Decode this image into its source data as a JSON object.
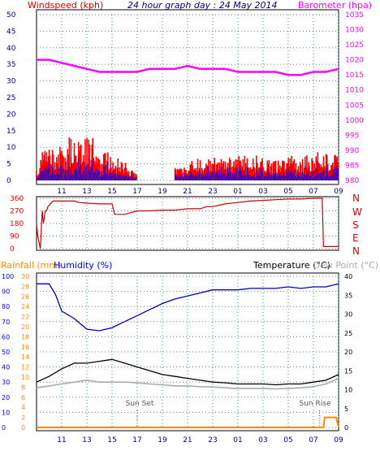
{
  "chart_data": [
    {
      "type": "line",
      "title": "24 hour graph day : 24 May 2014",
      "left_axis_label": "Windspeed (kph)",
      "right_axis_label": "Barometer (hpa)",
      "x_ticks": [
        "11",
        "13",
        "15",
        "17",
        "19",
        "21",
        "23",
        "01",
        "03",
        "05",
        "07",
        "09"
      ],
      "left_ticks": [
        0,
        5,
        10,
        15,
        20,
        25,
        30,
        35,
        40,
        45,
        50
      ],
      "right_ticks": [
        980,
        985,
        990,
        995,
        1000,
        1005,
        1010,
        1015,
        1020,
        1025,
        1030,
        1035
      ],
      "ylim_left": [
        0,
        50
      ],
      "ylim_right": [
        980,
        1035
      ],
      "grid": true,
      "series": [
        {
          "name": "Barometer (hpa)",
          "axis": "right",
          "color": "#ff00ff",
          "points": [
            [
              9.0,
              1020
            ],
            [
              10.0,
              1020
            ],
            [
              11.0,
              1019
            ],
            [
              12.0,
              1018
            ],
            [
              13.0,
              1017
            ],
            [
              14.0,
              1016
            ],
            [
              15.0,
              1016
            ],
            [
              16.0,
              1016
            ],
            [
              17.0,
              1016
            ],
            [
              18.0,
              1017
            ],
            [
              19.0,
              1017
            ],
            [
              20.0,
              1017
            ],
            [
              21.0,
              1018
            ],
            [
              22.0,
              1017
            ],
            [
              23.0,
              1017
            ],
            [
              24.0,
              1017
            ],
            [
              25.0,
              1016
            ],
            [
              26.0,
              1016
            ],
            [
              27.0,
              1016
            ],
            [
              28.0,
              1016
            ],
            [
              29.0,
              1015
            ],
            [
              30.0,
              1015
            ],
            [
              31.0,
              1016
            ],
            [
              32.0,
              1016
            ],
            [
              33.0,
              1017
            ]
          ]
        }
      ]
    },
    {
      "type": "line",
      "y_ticks": [
        0,
        90,
        180,
        270,
        360
      ],
      "direction_labels": [
        "N",
        "W",
        "S",
        "E",
        "N"
      ],
      "ylim": [
        0,
        360
      ],
      "grid": true,
      "series": [
        {
          "name": "Wind direction",
          "color": "#cc0000",
          "points": [
            [
              9.0,
              180
            ],
            [
              9.1,
              90
            ],
            [
              9.3,
              0
            ],
            [
              9.45,
              270
            ],
            [
              9.55,
              180
            ],
            [
              9.7,
              270
            ],
            [
              9.8,
              270
            ],
            [
              9.9,
              300
            ],
            [
              10.3,
              340
            ],
            [
              11.0,
              340
            ],
            [
              12.0,
              340
            ],
            [
              12.4,
              330
            ],
            [
              13.0,
              325
            ],
            [
              14.0,
              320
            ],
            [
              15.0,
              320
            ],
            [
              15.2,
              245
            ],
            [
              16.0,
              245
            ],
            [
              17.0,
              270
            ],
            [
              18.0,
              270
            ],
            [
              19.0,
              275
            ],
            [
              20.0,
              275
            ],
            [
              21.0,
              285
            ],
            [
              22.0,
              285
            ],
            [
              22.5,
              300
            ],
            [
              23.0,
              300
            ],
            [
              24.0,
              320
            ],
            [
              25.0,
              330
            ],
            [
              26.0,
              340
            ],
            [
              27.0,
              345
            ],
            [
              28.0,
              350
            ],
            [
              29.0,
              355
            ],
            [
              30.0,
              355
            ],
            [
              31.0,
              360
            ],
            [
              31.7,
              360
            ],
            [
              31.8,
              15
            ],
            [
              33.0,
              15
            ]
          ]
        }
      ]
    },
    {
      "type": "line",
      "left_axis_labels": [
        "Rainfall (mm)",
        "Humidity (%)"
      ],
      "right_axis_labels": [
        "Temperature (°C)",
        "Dew Point (°C)"
      ],
      "humidity_ticks": [
        0,
        10,
        20,
        30,
        40,
        50,
        60,
        70,
        80,
        90,
        100
      ],
      "rain_ticks": [
        0,
        2,
        4,
        6,
        8,
        10,
        12,
        14,
        16,
        18,
        20,
        22,
        24,
        26,
        28,
        30
      ],
      "temp_ticks": [
        0,
        5,
        10,
        15,
        20,
        25,
        30,
        35,
        40
      ],
      "x_ticks": [
        "11",
        "13",
        "15",
        "17",
        "19",
        "21",
        "23",
        "01",
        "03",
        "05",
        "07",
        "09"
      ],
      "annotations": [
        {
          "text": "Sun Set",
          "x": 17.0
        },
        {
          "text": "Sun Rise",
          "x": 31.5
        }
      ],
      "ylim_temp": [
        0,
        40
      ],
      "ylim_humidity": [
        0,
        100
      ],
      "grid": true,
      "series": [
        {
          "name": "Humidity (%)",
          "color": "#0000bb",
          "points": [
            [
              9.0,
              95
            ],
            [
              10.0,
              95
            ],
            [
              10.5,
              88
            ],
            [
              11.0,
              77
            ],
            [
              12.0,
              72
            ],
            [
              13.0,
              65
            ],
            [
              14.0,
              64
            ],
            [
              15.0,
              66
            ],
            [
              16.0,
              70
            ],
            [
              17.0,
              74
            ],
            [
              18.0,
              78
            ],
            [
              19.0,
              82
            ],
            [
              20.0,
              85
            ],
            [
              21.0,
              87
            ],
            [
              22.0,
              89
            ],
            [
              23.0,
              91
            ],
            [
              24.0,
              91
            ],
            [
              25.0,
              91
            ],
            [
              26.0,
              92
            ],
            [
              27.0,
              92
            ],
            [
              28.0,
              92
            ],
            [
              29.0,
              93
            ],
            [
              30.0,
              92
            ],
            [
              31.0,
              93
            ],
            [
              32.0,
              93
            ],
            [
              33.0,
              95
            ]
          ]
        },
        {
          "name": "Temperature (°C)",
          "color": "#000000",
          "points": [
            [
              9.0,
              12.0
            ],
            [
              10.0,
              13.5
            ],
            [
              11.0,
              15.5
            ],
            [
              12.0,
              17.0
            ],
            [
              13.0,
              17.0
            ],
            [
              14.0,
              17.5
            ],
            [
              15.0,
              18.0
            ],
            [
              16.0,
              17.0
            ],
            [
              17.0,
              16.0
            ],
            [
              18.0,
              15.0
            ],
            [
              19.0,
              14.0
            ],
            [
              20.0,
              13.5
            ],
            [
              21.0,
              13.0
            ],
            [
              22.0,
              12.5
            ],
            [
              23.0,
              12.0
            ],
            [
              24.0,
              11.8
            ],
            [
              25.0,
              11.5
            ],
            [
              26.0,
              11.5
            ],
            [
              27.0,
              11.5
            ],
            [
              28.0,
              11.3
            ],
            [
              29.0,
              11.5
            ],
            [
              30.0,
              11.5
            ],
            [
              31.0,
              12.0
            ],
            [
              32.0,
              12.5
            ],
            [
              33.0,
              14.0
            ]
          ]
        },
        {
          "name": "Dew Point (°C)",
          "color": "#aaaaaa",
          "points": [
            [
              9.0,
              10.5
            ],
            [
              10.0,
              11.0
            ],
            [
              11.0,
              11.5
            ],
            [
              12.0,
              12.0
            ],
            [
              13.0,
              12.5
            ],
            [
              14.0,
              12.0
            ],
            [
              15.0,
              12.0
            ],
            [
              16.0,
              12.0
            ],
            [
              17.0,
              11.8
            ],
            [
              18.0,
              11.5
            ],
            [
              19.0,
              11.3
            ],
            [
              20.0,
              11.0
            ],
            [
              21.0,
              11.0
            ],
            [
              22.0,
              10.8
            ],
            [
              23.0,
              10.7
            ],
            [
              24.0,
              10.5
            ],
            [
              25.0,
              10.3
            ],
            [
              26.0,
              10.3
            ],
            [
              27.0,
              10.3
            ],
            [
              28.0,
              10.2
            ],
            [
              29.0,
              10.3
            ],
            [
              30.0,
              10.5
            ],
            [
              31.0,
              10.8
            ],
            [
              32.0,
              11.5
            ],
            [
              33.0,
              13.0
            ]
          ]
        },
        {
          "name": "Rainfall (mm)",
          "color": "#ff8c00",
          "points": [
            [
              9.0,
              0
            ],
            [
              31.8,
              0
            ],
            [
              31.9,
              2
            ],
            [
              32.8,
              2
            ],
            [
              33.0,
              0
            ]
          ]
        }
      ]
    }
  ],
  "colors": {
    "windspeed": "#ff0000",
    "gust": "#ff0000",
    "avg_wind": "#0000ff",
    "wind_low": "#009900",
    "barometer_axis": "#ff00ff",
    "direction_axis": "#dd0000",
    "rain_axis": "#ff8c00",
    "humidity_axis": "#0000ff",
    "grid": "#00aaaa",
    "axis_text": "#000080"
  }
}
